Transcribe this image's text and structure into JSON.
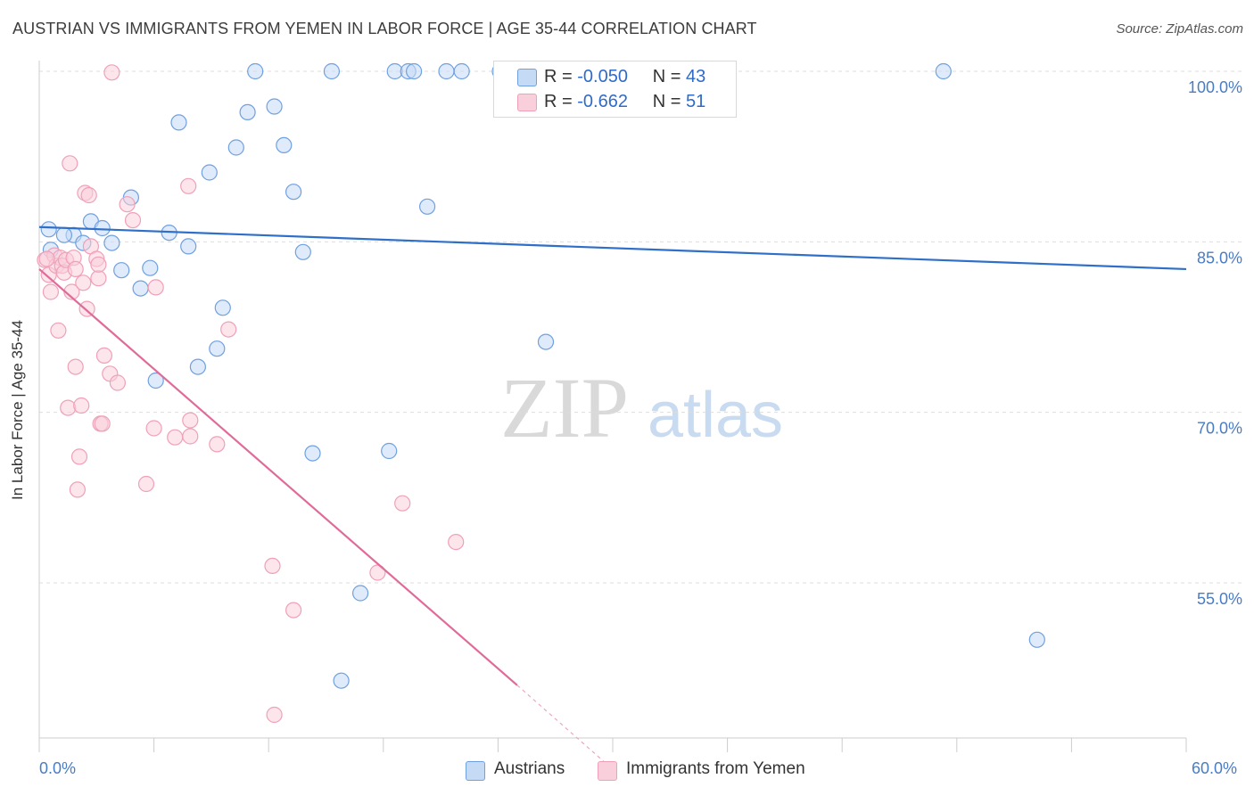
{
  "title": "AUSTRIAN VS IMMIGRANTS FROM YEMEN IN LABOR FORCE | AGE 35-44 CORRELATION CHART",
  "source": "Source: ZipAtlas.com",
  "watermark": {
    "zip": "ZIP",
    "atlas": "atlas"
  },
  "legend": {
    "rows": [
      {
        "r_label": "R =",
        "r_value": "-0.050",
        "n_label": "N =",
        "n_value": "43"
      },
      {
        "r_label": "R =",
        "r_value": "-0.662",
        "n_label": "N =",
        "n_value": "51"
      }
    ]
  },
  "chart_data": {
    "type": "scatter",
    "ylabel": "In Labor Force | Age 35-44",
    "xlim": [
      0,
      60
    ],
    "ylim": [
      40,
      102
    ],
    "x_tick_labels": [
      "0.0%",
      "60.0%"
    ],
    "y_ticks": [
      {
        "value": 100,
        "label": "100.0%"
      },
      {
        "value": 85,
        "label": "85.0%"
      },
      {
        "value": 70,
        "label": "70.0%"
      },
      {
        "value": 55,
        "label": "55.0%"
      }
    ],
    "grid": "horizontal dashed",
    "series": [
      {
        "name": "Austrians",
        "color": "#6fa0e0",
        "fill": "#c5daf5",
        "line_color": "#2f6fc9",
        "trend": {
          "x0": 0,
          "y0": 86.3,
          "x1": 60,
          "y1": 82.6
        },
        "points": [
          [
            0.5,
            86.1
          ],
          [
            0.6,
            84.3
          ],
          [
            1.8,
            85.6
          ],
          [
            2.3,
            84.9
          ],
          [
            2.7,
            86.8
          ],
          [
            3.3,
            86.2
          ],
          [
            3.8,
            84.9
          ],
          [
            4.3,
            82.5
          ],
          [
            4.8,
            88.9
          ],
          [
            5.3,
            80.9
          ],
          [
            5.8,
            82.7
          ],
          [
            6.8,
            85.8
          ],
          [
            7.3,
            95.5
          ],
          [
            7.8,
            84.6
          ],
          [
            8.3,
            74.0
          ],
          [
            8.9,
            91.1
          ],
          [
            9.3,
            75.6
          ],
          [
            9.6,
            79.2
          ],
          [
            10.3,
            93.3
          ],
          [
            10.9,
            96.4
          ],
          [
            11.3,
            100.0
          ],
          [
            12.3,
            96.9
          ],
          [
            12.8,
            93.5
          ],
          [
            13.3,
            89.4
          ],
          [
            13.8,
            84.1
          ],
          [
            14.3,
            66.4
          ],
          [
            15.3,
            100.0
          ],
          [
            15.8,
            46.4
          ],
          [
            16.8,
            54.1
          ],
          [
            18.3,
            66.6
          ],
          [
            18.6,
            100.0
          ],
          [
            19.3,
            100.0
          ],
          [
            19.6,
            100.0
          ],
          [
            20.3,
            88.1
          ],
          [
            21.3,
            100.0
          ],
          [
            22.1,
            100.0
          ],
          [
            24.1,
            100.0
          ],
          [
            25.5,
            100.0
          ],
          [
            26.5,
            76.2
          ],
          [
            47.3,
            100.0
          ],
          [
            52.2,
            50.0
          ],
          [
            6.1,
            72.8
          ],
          [
            1.3,
            85.6
          ]
        ]
      },
      {
        "name": "Immigrants from Yemen",
        "color": "#f0a0b8",
        "fill": "#f9cfdb",
        "line_color": "#e06b98",
        "trend": {
          "x0": 0,
          "y0": 82.6,
          "x1": 25,
          "y1": 46.0
        },
        "trend_ext": {
          "x0": 25,
          "y0": 46.0,
          "x1": 30,
          "y1": 38.6
        },
        "points": [
          [
            0.3,
            83.4
          ],
          [
            0.5,
            82.1
          ],
          [
            0.6,
            80.6
          ],
          [
            0.8,
            83.8
          ],
          [
            0.9,
            82.9
          ],
          [
            1.0,
            77.2
          ],
          [
            1.1,
            83.6
          ],
          [
            1.2,
            82.9
          ],
          [
            1.3,
            82.3
          ],
          [
            1.4,
            83.4
          ],
          [
            1.5,
            70.4
          ],
          [
            1.6,
            91.9
          ],
          [
            1.7,
            80.6
          ],
          [
            1.8,
            83.6
          ],
          [
            1.9,
            74.0
          ],
          [
            2.0,
            63.2
          ],
          [
            2.1,
            66.1
          ],
          [
            2.2,
            70.6
          ],
          [
            2.3,
            81.4
          ],
          [
            2.4,
            89.3
          ],
          [
            2.5,
            79.1
          ],
          [
            2.6,
            89.1
          ],
          [
            2.7,
            84.6
          ],
          [
            3.0,
            83.5
          ],
          [
            3.1,
            81.8
          ],
          [
            3.2,
            69.0
          ],
          [
            3.3,
            69.0
          ],
          [
            3.4,
            75.0
          ],
          [
            3.7,
            73.4
          ],
          [
            3.8,
            99.9
          ],
          [
            4.1,
            72.6
          ],
          [
            4.6,
            88.3
          ],
          [
            4.9,
            86.9
          ],
          [
            5.6,
            63.7
          ],
          [
            6.0,
            68.6
          ],
          [
            6.1,
            81.0
          ],
          [
            7.1,
            67.8
          ],
          [
            7.8,
            89.9
          ],
          [
            7.9,
            69.3
          ],
          [
            7.9,
            67.9
          ],
          [
            9.3,
            67.2
          ],
          [
            9.9,
            77.3
          ],
          [
            12.2,
            56.5
          ],
          [
            12.3,
            43.4
          ],
          [
            13.3,
            52.6
          ],
          [
            17.7,
            55.9
          ],
          [
            19.0,
            62.0
          ],
          [
            21.8,
            58.6
          ],
          [
            0.4,
            83.5
          ],
          [
            1.9,
            82.6
          ],
          [
            3.1,
            83.0
          ]
        ]
      }
    ]
  }
}
